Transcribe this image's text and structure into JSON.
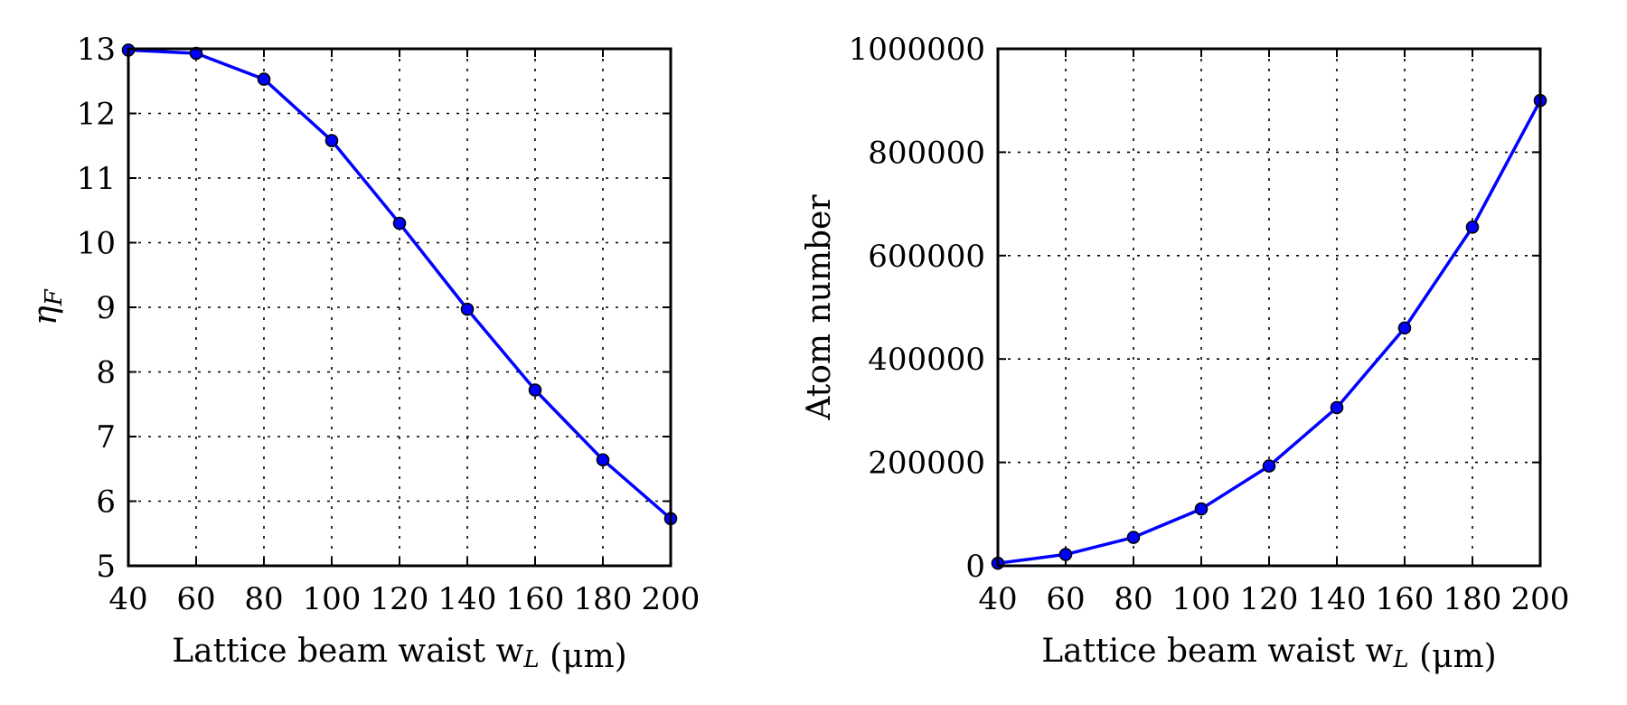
{
  "chart_data": [
    {
      "type": "line",
      "x": [
        40,
        60,
        80,
        100,
        120,
        140,
        160,
        180,
        200
      ],
      "series": [
        {
          "values": [
            12.98,
            12.93,
            12.53,
            11.58,
            10.3,
            8.97,
            7.72,
            6.64,
            5.73
          ]
        }
      ],
      "xlabel": "Lattice beam waist w_L (μm)",
      "ylabel": "η_F",
      "xlim": [
        40,
        200
      ],
      "ylim": [
        5,
        13
      ],
      "xticks": [
        "40",
        "60",
        "80",
        "100",
        "120",
        "140",
        "160",
        "180",
        "200"
      ],
      "yticks": [
        "5",
        "6",
        "7",
        "8",
        "9",
        "10",
        "11",
        "12",
        "13"
      ],
      "grid": true,
      "line_color": "#0000ff",
      "marker_color": "#0000ff"
    },
    {
      "type": "line",
      "x": [
        40,
        60,
        80,
        100,
        120,
        140,
        160,
        180,
        200
      ],
      "series": [
        {
          "values": [
            5000,
            22000,
            55000,
            110000,
            193000,
            306000,
            460000,
            655000,
            900000
          ]
        }
      ],
      "xlabel": "Lattice beam waist w_L (μm)",
      "ylabel": "Atom number",
      "xlim": [
        40,
        200
      ],
      "ylim": [
        0,
        1000000
      ],
      "xticks": [
        "40",
        "60",
        "80",
        "100",
        "120",
        "140",
        "160",
        "180",
        "200"
      ],
      "yticks": [
        "0",
        "200000",
        "400000",
        "600000",
        "800000",
        "1000000"
      ],
      "grid": true,
      "line_color": "#0000ff",
      "marker_color": "#0000ff"
    }
  ]
}
